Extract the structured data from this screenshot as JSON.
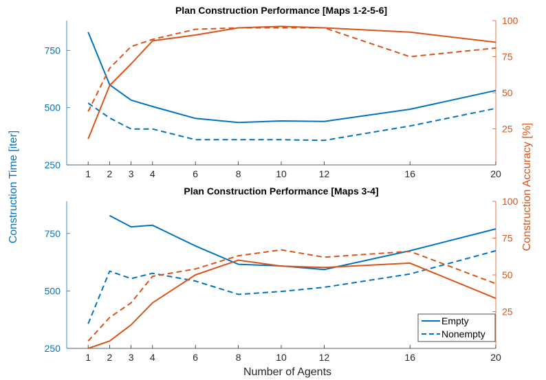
{
  "colors": {
    "time": "#0072BD",
    "accuracy": "#D95319",
    "axis": "#262626"
  },
  "shared": {
    "xlabel": "Number of Agents",
    "ylabel_left": "Construction Time [iter]",
    "ylabel_right": "Construction Accuracy [%]"
  },
  "legend": {
    "solid": "Empty",
    "dashed": "Nonempty",
    "position": "bottom-right"
  },
  "chart_data": [
    {
      "type": "line",
      "title": "Plan Construction Performance [Maps 1-2-5-6]",
      "x": [
        1,
        2,
        3,
        4,
        6,
        8,
        10,
        12,
        16,
        20
      ],
      "xlim": [
        0,
        20
      ],
      "xticks": [
        "1",
        "2",
        "3",
        "4",
        "6",
        "8",
        "10",
        "12",
        "16",
        "20"
      ],
      "ylim_left": [
        250,
        880
      ],
      "yticks_left": [
        "250",
        "500",
        "750"
      ],
      "ylim_right": [
        0,
        100
      ],
      "yticks_right": [
        "25",
        "50",
        "75",
        "100"
      ],
      "series": [
        {
          "name": "Empty",
          "axis": "left",
          "style": "solid",
          "x": [
            1,
            2,
            3,
            4,
            6,
            8,
            10,
            12,
            16,
            20
          ],
          "values": [
            830,
            600,
            533,
            505,
            453,
            435,
            442,
            440,
            493,
            575
          ]
        },
        {
          "name": "Nonempty",
          "axis": "left",
          "style": "dashed",
          "x": [
            1,
            2,
            3,
            4,
            6,
            8,
            10,
            12,
            16,
            20
          ],
          "values": [
            520,
            455,
            407,
            407,
            360,
            360,
            360,
            357,
            420,
            497
          ]
        },
        {
          "name": "Empty",
          "axis": "right",
          "style": "solid",
          "x": [
            1,
            2,
            3,
            4,
            6,
            8,
            10,
            12,
            16,
            20
          ],
          "values": [
            18,
            55,
            70,
            86,
            90,
            95,
            96,
            95,
            92,
            85
          ]
        },
        {
          "name": "Nonempty",
          "axis": "right",
          "style": "dashed",
          "x": [
            1,
            2,
            3,
            4,
            6,
            8,
            10,
            12,
            16,
            20
          ],
          "values": [
            37,
            67,
            82,
            87,
            94,
            95,
            95,
            95,
            75,
            81
          ]
        }
      ]
    },
    {
      "type": "line",
      "title": "Plan Construction Performance [Maps 3-4]",
      "x": [
        1,
        2,
        3,
        4,
        6,
        8,
        10,
        12,
        16,
        20
      ],
      "xlim": [
        0,
        20
      ],
      "xticks": [
        "1",
        "2",
        "3",
        "4",
        "6",
        "8",
        "10",
        "12",
        "16",
        "20"
      ],
      "ylim_left": [
        250,
        890
      ],
      "yticks_left": [
        "250",
        "500",
        "750"
      ],
      "ylim_right": [
        0,
        100
      ],
      "yticks_right": [
        "25",
        "50",
        "75",
        "100"
      ],
      "series": [
        {
          "name": "Empty",
          "axis": "left",
          "style": "solid",
          "x": [
            2,
            3,
            4,
            6,
            8,
            10,
            12,
            16,
            20
          ],
          "values": [
            828,
            779,
            786,
            696,
            616,
            609,
            593,
            675,
            770
          ]
        },
        {
          "name": "Nonempty",
          "axis": "left",
          "style": "dashed",
          "x": [
            1,
            2,
            3,
            4,
            6,
            8,
            10,
            12,
            16,
            20
          ],
          "values": [
            357,
            586,
            554,
            577,
            543,
            485,
            498,
            516,
            574,
            675
          ]
        },
        {
          "name": "Empty",
          "axis": "right",
          "style": "solid",
          "x": [
            1,
            2,
            3,
            4,
            6,
            8,
            10,
            12,
            16,
            20
          ],
          "values": [
            0,
            5,
            16,
            31,
            50,
            60,
            56,
            55,
            58,
            34
          ]
        },
        {
          "name": "Nonempty",
          "axis": "right",
          "style": "dashed",
          "x": [
            1,
            2,
            3,
            4,
            6,
            8,
            10,
            12,
            16,
            20
          ],
          "values": [
            5,
            21,
            31,
            49,
            54,
            63,
            67,
            62,
            66,
            44
          ]
        }
      ]
    }
  ]
}
